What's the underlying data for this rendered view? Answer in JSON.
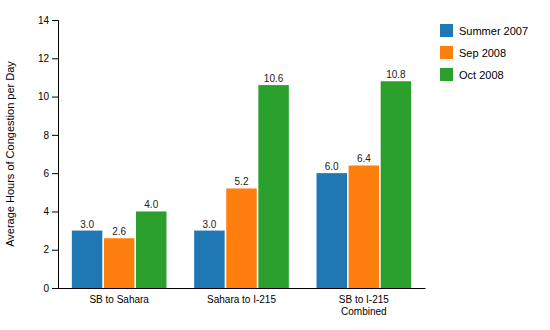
{
  "chart_data": {
    "type": "bar",
    "categories": [
      "SB to Sahara",
      "Sahara to I-215",
      "SB to I-215\nCombined"
    ],
    "series": [
      {
        "name": "Summer 2007",
        "values": [
          3.0,
          3.0,
          6.0
        ],
        "value_labels": [
          "3.0",
          "3.0",
          "6.0"
        ]
      },
      {
        "name": "Sep 2008",
        "values": [
          2.6,
          5.2,
          6.4
        ],
        "value_labels": [
          "2.6",
          "5.2",
          "6.4"
        ]
      },
      {
        "name": "Oct 2008",
        "values": [
          4.0,
          10.6,
          10.8
        ],
        "value_labels": [
          "4.0",
          "10.6",
          "10.8"
        ]
      }
    ],
    "ylabel": "Average Hours of Congestion per Day",
    "ylim": [
      0,
      14
    ],
    "yticks": [
      0,
      2,
      4,
      6,
      8,
      10,
      12,
      14
    ],
    "data_labels": true,
    "grid": false,
    "legend": "right"
  }
}
